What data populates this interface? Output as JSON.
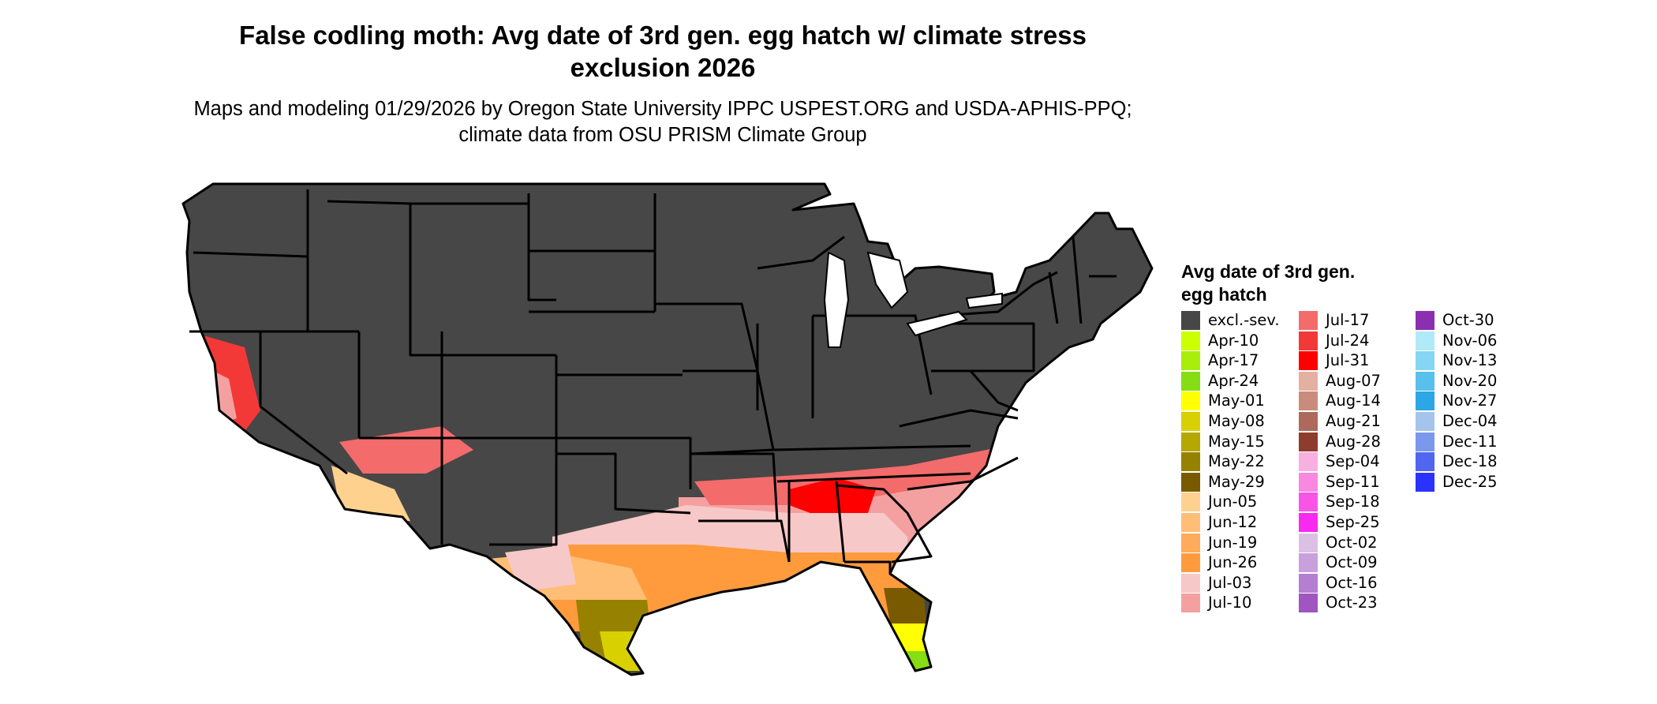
{
  "title": "False codling moth: Avg date of 3rd gen. egg hatch w/ climate stress exclusion 2026",
  "subtitle": "Maps and modeling 01/29/2026 by Oregon State University IPPC USPEST.ORG and USDA-APHIS-PPQ; climate data from OSU PRISM Climate Group",
  "colors": {
    "excluded_fill": "#474747",
    "state_border": "#000000",
    "background": "#ffffff"
  },
  "legend": {
    "title": "Avg date of 3rd gen. egg hatch",
    "items": [
      {
        "label": "excl.-sev.",
        "color": "#474747"
      },
      {
        "label": "Apr-10",
        "color": "#ccff00"
      },
      {
        "label": "Apr-17",
        "color": "#a9ee0a"
      },
      {
        "label": "Apr-24",
        "color": "#86dd14"
      },
      {
        "label": "May-01",
        "color": "#ffff00"
      },
      {
        "label": "May-08",
        "color": "#d9d000"
      },
      {
        "label": "May-15",
        "color": "#b5a800"
      },
      {
        "label": "May-22",
        "color": "#978200"
      },
      {
        "label": "May-29",
        "color": "#7a5a00"
      },
      {
        "label": "Jun-05",
        "color": "#ffd18f"
      },
      {
        "label": "Jun-12",
        "color": "#ffbe75"
      },
      {
        "label": "Jun-19",
        "color": "#ffab5c"
      },
      {
        "label": "Jun-26",
        "color": "#ff9b3d"
      },
      {
        "label": "Jul-03",
        "color": "#f7c8c8"
      },
      {
        "label": "Jul-10",
        "color": "#f5a0a0"
      },
      {
        "label": "Jul-17",
        "color": "#f36b6b"
      },
      {
        "label": "Jul-24",
        "color": "#f33838"
      },
      {
        "label": "Jul-31",
        "color": "#ff0000"
      },
      {
        "label": "Aug-07",
        "color": "#e3b0a2"
      },
      {
        "label": "Aug-14",
        "color": "#c98c7c"
      },
      {
        "label": "Aug-21",
        "color": "#ad6a5c"
      },
      {
        "label": "Aug-28",
        "color": "#8e3c2c"
      },
      {
        "label": "Sep-04",
        "color": "#f8b0e0"
      },
      {
        "label": "Sep-11",
        "color": "#f888e0"
      },
      {
        "label": "Sep-18",
        "color": "#f855e6"
      },
      {
        "label": "Sep-25",
        "color": "#f82af0"
      },
      {
        "label": "Oct-02",
        "color": "#dcc0e4"
      },
      {
        "label": "Oct-09",
        "color": "#c8a0dc"
      },
      {
        "label": "Oct-16",
        "color": "#b47fd0"
      },
      {
        "label": "Oct-23",
        "color": "#a055c0"
      },
      {
        "label": "Oct-30",
        "color": "#8b2fb0"
      },
      {
        "label": "Nov-06",
        "color": "#b0eaf8"
      },
      {
        "label": "Nov-13",
        "color": "#84d6f2"
      },
      {
        "label": "Nov-20",
        "color": "#58c0ec"
      },
      {
        "label": "Nov-27",
        "color": "#2ca6e4"
      },
      {
        "label": "Dec-04",
        "color": "#a4c4ec"
      },
      {
        "label": "Dec-11",
        "color": "#7c98ec"
      },
      {
        "label": "Dec-18",
        "color": "#5066f0"
      },
      {
        "label": "Dec-25",
        "color": "#2a32ff"
      }
    ]
  }
}
